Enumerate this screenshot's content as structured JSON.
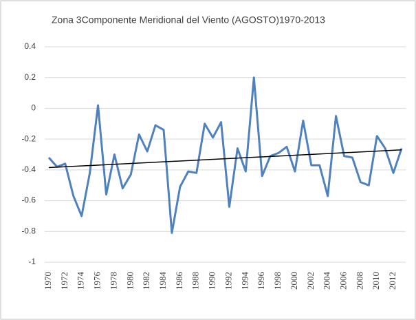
{
  "chart_data": {
    "type": "line",
    "title": "Zona 3Componente Meridional del Viento (AGOSTO)1970-2013",
    "categories": [
      "1970",
      null,
      "1972",
      null,
      "1974",
      null,
      "1976",
      null,
      "1978",
      null,
      "1980",
      null,
      "1982",
      null,
      "1984",
      null,
      "1986",
      null,
      "1988",
      null,
      "1990",
      null,
      "1992",
      null,
      "1994",
      null,
      "1996",
      null,
      "1998",
      null,
      "2000",
      null,
      "2002",
      null,
      "2004",
      null,
      "2006",
      null,
      "2008",
      null,
      "2010",
      null,
      "2012",
      null
    ],
    "series": [
      {
        "color": "#4f81bd",
        "values": [
          -0.32,
          -0.38,
          -0.36,
          -0.57,
          -0.7,
          -0.42,
          0.02,
          -0.56,
          -0.3,
          -0.52,
          -0.43,
          -0.17,
          -0.28,
          -0.11,
          -0.14,
          -0.81,
          -0.51,
          -0.41,
          -0.42,
          -0.1,
          -0.19,
          -0.09,
          -0.64,
          -0.26,
          -0.41,
          0.2,
          -0.44,
          -0.31,
          -0.29,
          -0.25,
          -0.41,
          -0.08,
          -0.37,
          -0.37,
          -0.57,
          -0.05,
          -0.31,
          -0.32,
          -0.48,
          -0.5,
          -0.18,
          -0.26,
          -0.42,
          -0.26
        ]
      }
    ],
    "trendline": {
      "color": "#000000",
      "values": [
        -0.385,
        -0.27
      ]
    },
    "ylim": [
      -1,
      0.4
    ],
    "yticks": [
      0.4,
      0.2,
      0,
      -0.2,
      -0.4,
      -0.6,
      -0.8,
      -1
    ],
    "grid": true
  }
}
